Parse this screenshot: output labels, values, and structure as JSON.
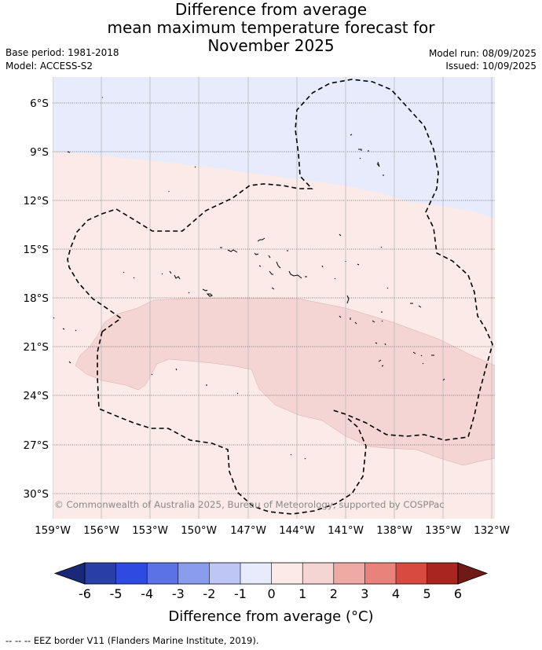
{
  "title_lines": [
    "Difference from average",
    "mean maximum temperature forecast for",
    "November 2025"
  ],
  "base_period": "Base period: 1981-2018",
  "model": "Model: ACCESS-S2",
  "model_run": "Model run: 08/09/2025",
  "issued": "Issued: 10/09/2025",
  "copyright": "© Commonwealth of Australia 2025, Bureau of Meteorology, supported by COSPPac",
  "lat_labels": [
    "6°S",
    "9°S",
    "12°S",
    "15°S",
    "18°S",
    "21°S",
    "24°S",
    "27°S",
    "30°S"
  ],
  "lon_labels": [
    "159°W",
    "156°W",
    "153°W",
    "150°W",
    "147°W",
    "144°W",
    "141°W",
    "138°W",
    "135°W",
    "132°W"
  ],
  "colorbar": {
    "label": "Difference from average (°C)",
    "ticks": [
      "-6",
      "-5",
      "-4",
      "-3",
      "-2",
      "-1",
      "0",
      "1",
      "2",
      "3",
      "4",
      "5",
      "6"
    ],
    "colors": [
      "#2a3ea8",
      "#2e4ae0",
      "#5b72e6",
      "#8a9ced",
      "#bec6f5",
      "#e7ebfc",
      "#fbeae8",
      "#f5d5d3",
      "#efaaa6",
      "#e8827b",
      "#d84a40",
      "#a9251f"
    ],
    "under_color": "#1a2878",
    "over_color": "#6e1a16"
  },
  "legend_text": "--  --  -- EEZ border V11 (Flanders Marine Institute, 2019).",
  "region_colors": {
    "cool_minus1": "#e7ebfc",
    "warm_0_1": "#fbeae8",
    "warm_1_2": "#f5d5d3"
  }
}
